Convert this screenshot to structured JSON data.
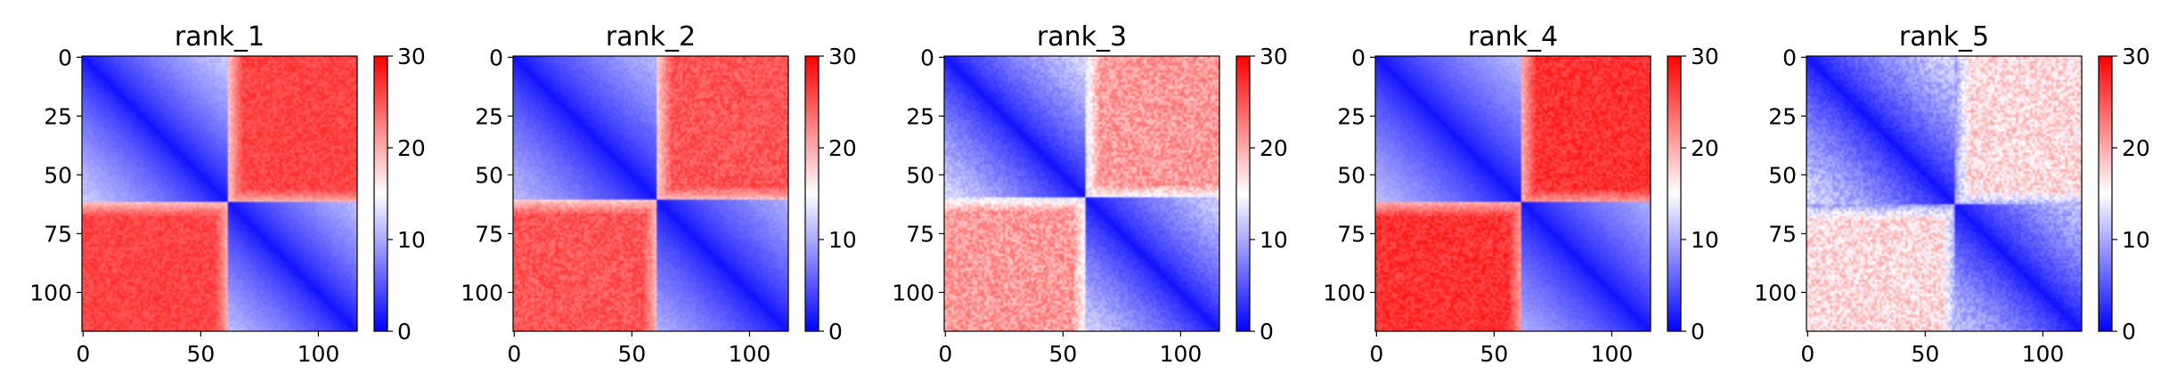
{
  "chart_data": [
    {
      "type": "heatmap",
      "title": "rank_1",
      "matrix_size": 117,
      "x_ticks": [
        "0",
        "50",
        "100"
      ],
      "y_ticks": [
        "0",
        "25",
        "50",
        "75",
        "100"
      ],
      "colorbar": {
        "min": 0,
        "max": 30,
        "ticks": [
          "0",
          "10",
          "20",
          "30"
        ],
        "colormap": "bwr"
      },
      "domain_boundary": 62,
      "pattern": "two contact domains: low values (blue) within blocks 0-62 and 62-117, high values (red) between blocks",
      "near_value": 1,
      "intra_far_value": 12,
      "inter_value": 26,
      "noise": 0.06
    },
    {
      "type": "heatmap",
      "title": "rank_2",
      "matrix_size": 117,
      "x_ticks": [
        "0",
        "50",
        "100"
      ],
      "y_ticks": [
        "0",
        "25",
        "50",
        "75",
        "100"
      ],
      "colorbar": {
        "min": 0,
        "max": 30,
        "ticks": [
          "0",
          "10",
          "20",
          "30"
        ],
        "colormap": "bwr"
      },
      "domain_boundary": 61,
      "pattern": "two contact domains: low values (blue) within blocks, high values (red) between blocks",
      "near_value": 1,
      "intra_far_value": 11,
      "inter_value": 25,
      "noise": 0.08
    },
    {
      "type": "heatmap",
      "title": "rank_3",
      "matrix_size": 117,
      "x_ticks": [
        "0",
        "50",
        "100"
      ],
      "y_ticks": [
        "0",
        "25",
        "50",
        "75",
        "100"
      ],
      "colorbar": {
        "min": 0,
        "max": 30,
        "ticks": [
          "0",
          "10",
          "20",
          "30"
        ],
        "colormap": "bwr"
      },
      "domain_boundary": 60,
      "pattern": "two weaker domains: blue diagonal band, pale red off-diagonal blocks",
      "near_value": 1,
      "intra_far_value": 13,
      "inter_value": 21,
      "noise": 0.14
    },
    {
      "type": "heatmap",
      "title": "rank_4",
      "matrix_size": 117,
      "x_ticks": [
        "0",
        "50",
        "100"
      ],
      "y_ticks": [
        "0",
        "25",
        "50",
        "75",
        "100"
      ],
      "colorbar": {
        "min": 0,
        "max": 30,
        "ticks": [
          "0",
          "10",
          "20",
          "30"
        ],
        "colormap": "bwr"
      },
      "domain_boundary": 62,
      "pattern": "two contact domains: low values (blue) within blocks, high values (red) between blocks",
      "near_value": 1,
      "intra_far_value": 11,
      "inter_value": 27,
      "noise": 0.07
    },
    {
      "type": "heatmap",
      "title": "rank_5",
      "matrix_size": 117,
      "x_ticks": [
        "0",
        "50",
        "100"
      ],
      "y_ticks": [
        "0",
        "25",
        "50",
        "75",
        "100"
      ],
      "colorbar": {
        "min": 0,
        "max": 30,
        "ticks": [
          "0",
          "10",
          "20",
          "30"
        ],
        "colormap": "bwr"
      },
      "domain_boundary": 63,
      "pattern": "blue diagonal band with mixed pale blue/pale red off-diagonal regions",
      "near_value": 1,
      "intra_far_value": 13,
      "inter_value": 17,
      "noise": 0.2
    }
  ]
}
